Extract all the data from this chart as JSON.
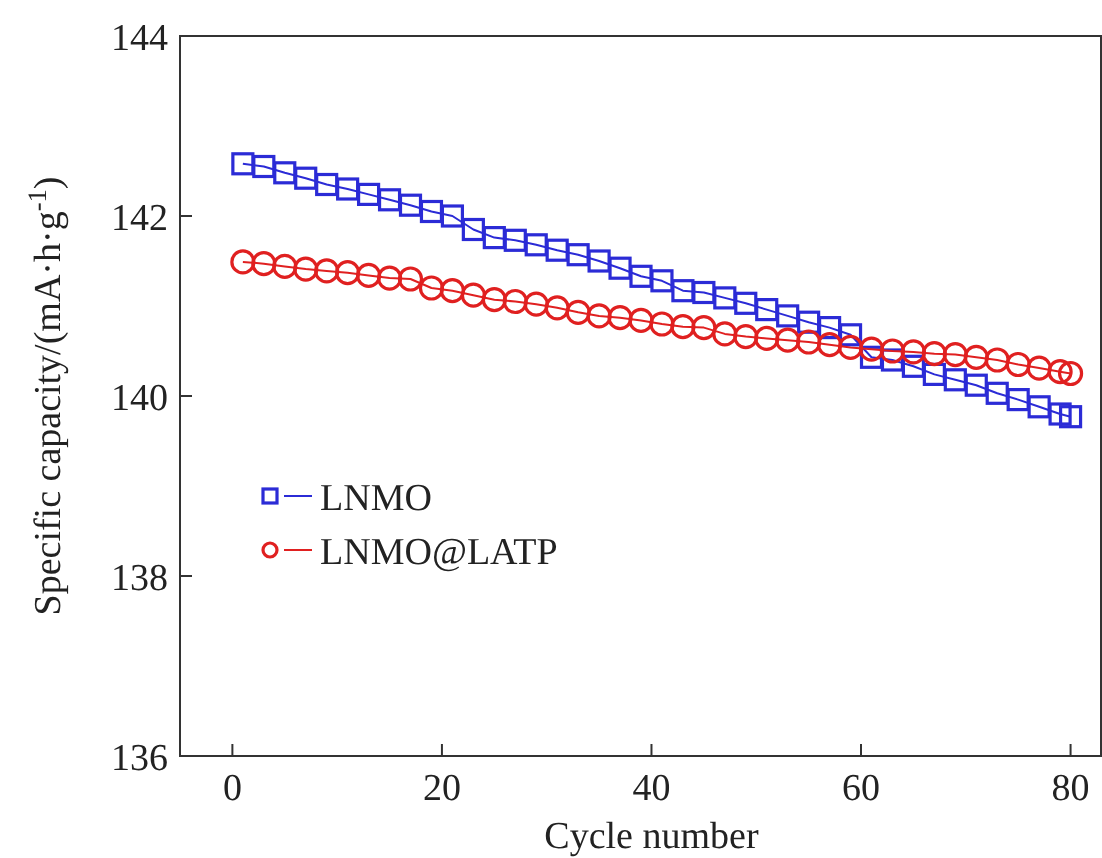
{
  "chart_data": {
    "type": "line",
    "xlabel": "Cycle number",
    "ylabel": "Specific capacity/(mA·h·g$^{-1}$)",
    "xlim": [
      -5,
      83
    ],
    "xticks": [
      0,
      20,
      40,
      60,
      80
    ],
    "ylim": [
      136,
      144
    ],
    "yticks": [
      136,
      138,
      140,
      142,
      144
    ],
    "grid": false,
    "legend": "left",
    "line_style": "solid",
    "series": [
      {
        "name": "LNMO",
        "color": "#2b2bd6",
        "marker": "square",
        "x": [
          1,
          3,
          5,
          7,
          9,
          11,
          13,
          15,
          17,
          19,
          21,
          23,
          25,
          27,
          29,
          31,
          33,
          35,
          37,
          39,
          41,
          43,
          45,
          47,
          49,
          51,
          53,
          55,
          57,
          59,
          61,
          63,
          65,
          67,
          69,
          71,
          73,
          75,
          77,
          79,
          80
        ],
        "values": [
          142.58,
          142.55,
          142.48,
          142.42,
          142.35,
          142.3,
          142.24,
          142.18,
          142.12,
          142.05,
          142.0,
          141.85,
          141.76,
          141.73,
          141.68,
          141.62,
          141.57,
          141.5,
          141.42,
          141.33,
          141.28,
          141.17,
          141.15,
          141.09,
          141.03,
          140.96,
          140.89,
          140.82,
          140.76,
          140.68,
          140.43,
          140.4,
          140.33,
          140.24,
          140.18,
          140.12,
          140.03,
          139.96,
          139.88,
          139.8,
          139.77
        ]
      },
      {
        "name": "LNMO@LATP",
        "color": "#e02020",
        "marker": "circle",
        "x": [
          1,
          3,
          5,
          7,
          9,
          11,
          13,
          15,
          17,
          19,
          21,
          23,
          25,
          27,
          29,
          31,
          33,
          35,
          37,
          39,
          41,
          43,
          45,
          47,
          49,
          51,
          53,
          55,
          57,
          59,
          61,
          63,
          65,
          67,
          69,
          71,
          73,
          75,
          77,
          79,
          80
        ],
        "values": [
          141.49,
          141.47,
          141.44,
          141.41,
          141.39,
          141.37,
          141.34,
          141.31,
          141.3,
          141.2,
          141.17,
          141.12,
          141.07,
          141.05,
          141.02,
          140.98,
          140.93,
          140.89,
          140.87,
          140.84,
          140.8,
          140.77,
          140.76,
          140.69,
          140.66,
          140.64,
          140.62,
          140.6,
          140.57,
          140.54,
          140.52,
          140.5,
          140.49,
          140.47,
          140.46,
          140.43,
          140.4,
          140.35,
          140.31,
          140.27,
          140.25
        ]
      }
    ]
  }
}
